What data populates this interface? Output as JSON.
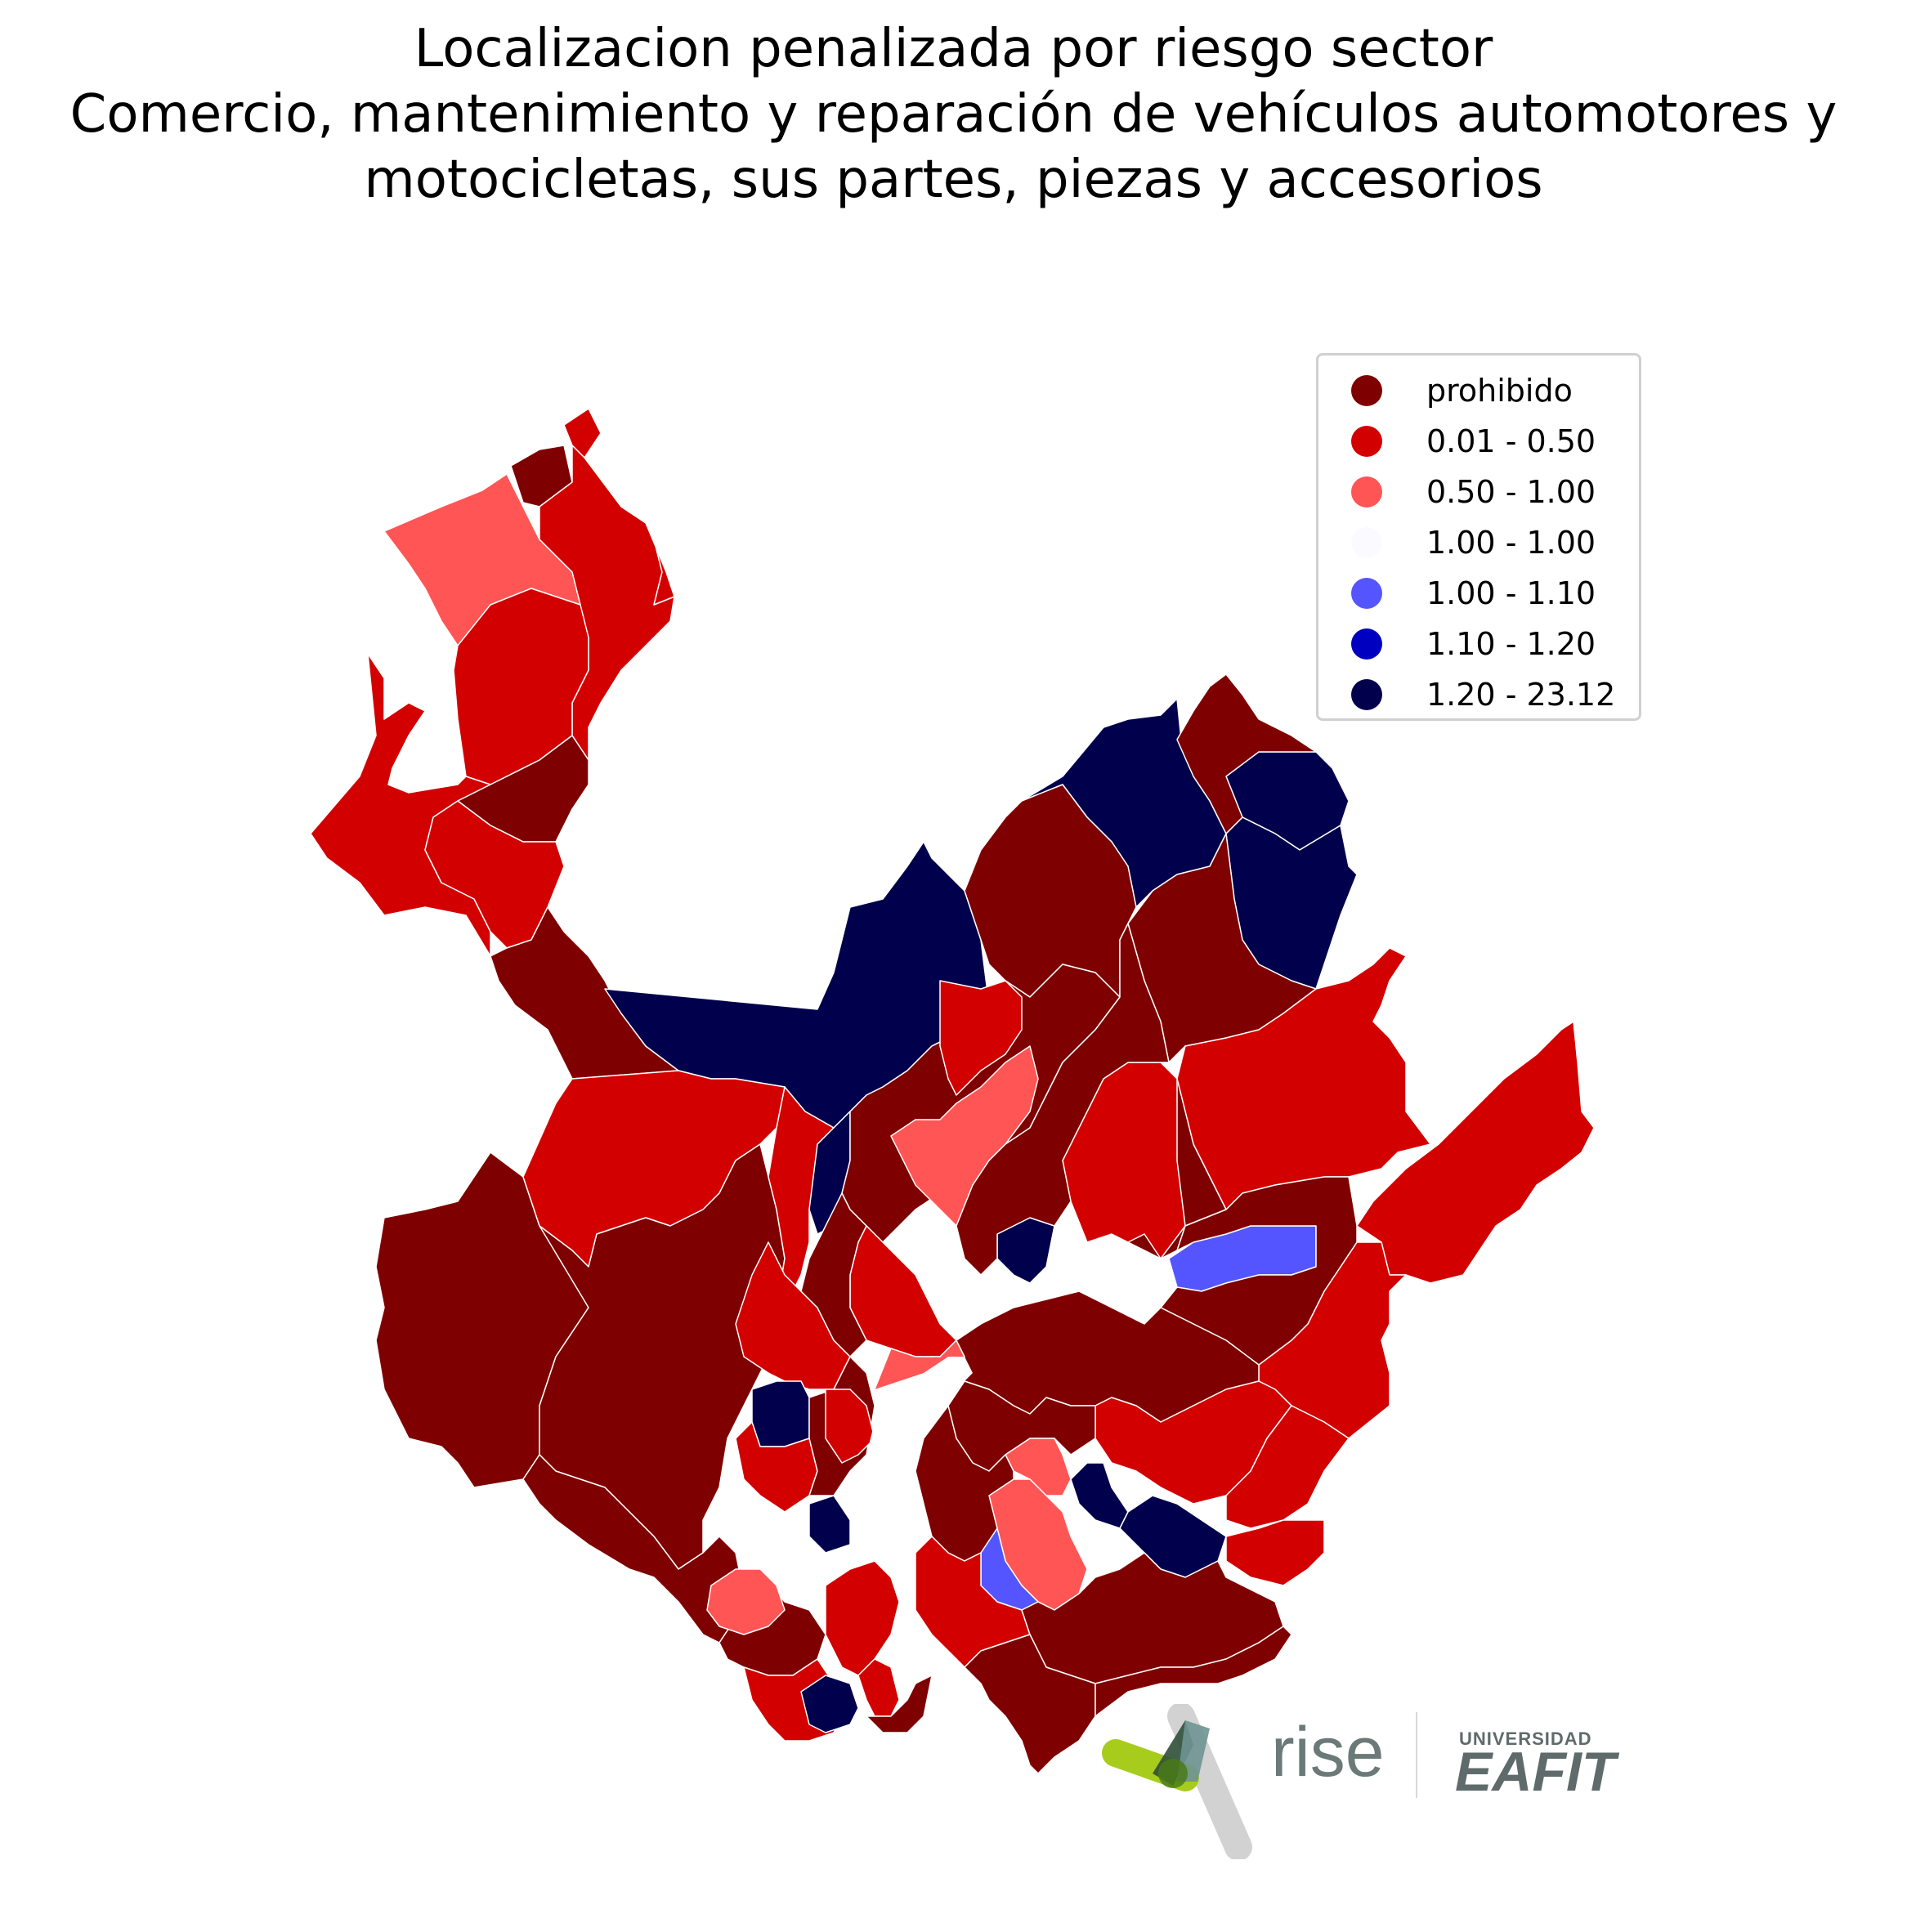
{
  "title": {
    "line1": "Localizacion penalizada por riesgo sector",
    "line2": "Comercio, mantenimiento y reparación de vehículos automotores y",
    "line3": "motocicletas, sus partes, piezas y accesorios"
  },
  "legend": {
    "items": [
      {
        "label": "prohibido",
        "color": "#7f0000"
      },
      {
        "label": "0.01 - 0.50",
        "color": "#d30000"
      },
      {
        "label": "0.50 - 1.00",
        "color": "#ff5555"
      },
      {
        "label": "1.00 - 1.00",
        "color": "#fbfbff"
      },
      {
        "label": "1.00 - 1.10",
        "color": "#5555ff"
      },
      {
        "label": "1.10 - 1.20",
        "color": "#0000c0"
      },
      {
        "label": "1.20 - 23.12",
        "color": "#00004c"
      }
    ]
  },
  "logos": {
    "rise": "rise",
    "university_small": "UNIVERSIDAD",
    "university_big": "EAFIT"
  },
  "colors": {
    "prohibido": "#7f0000",
    "low": "#d30000",
    "mid": "#ff5555",
    "blue_light": "#5555ff",
    "navy": "#00004c",
    "rise_green": "#a8cc1c",
    "rise_teal": "#6e9392"
  }
}
